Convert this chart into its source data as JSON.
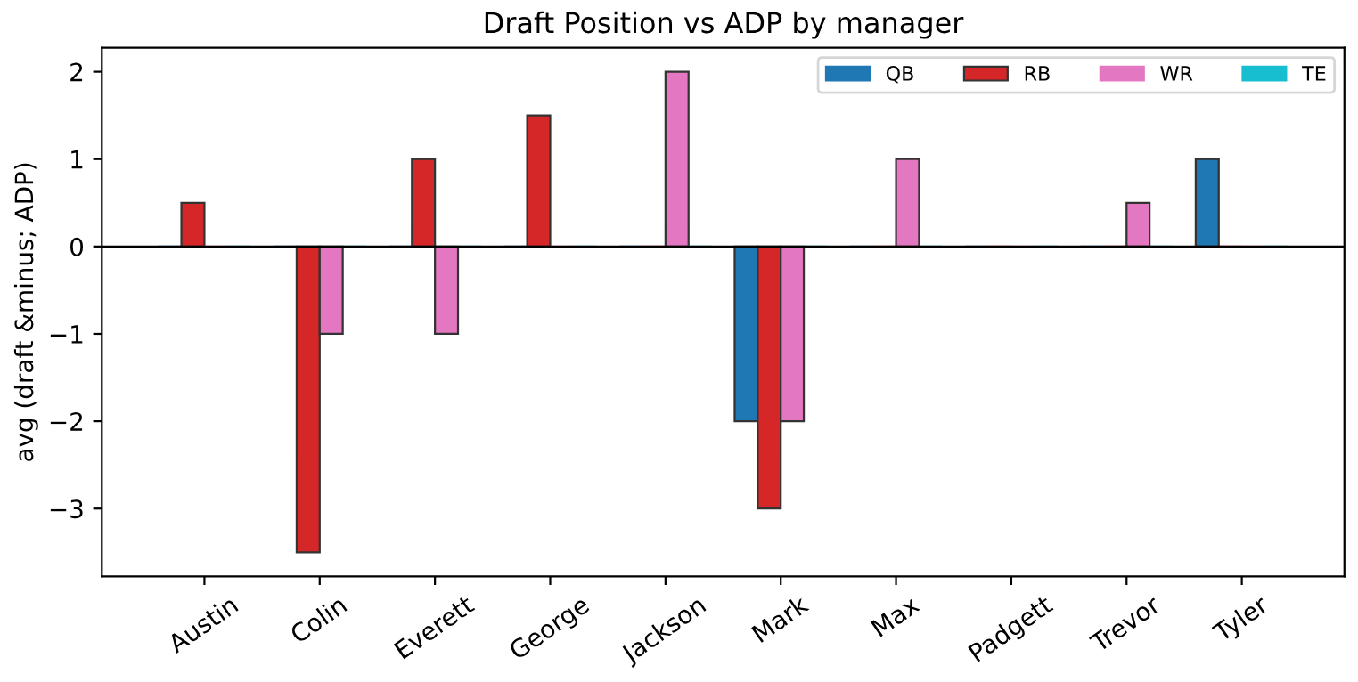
{
  "chart_data": {
    "type": "bar",
    "title": "Draft Position vs ADP by manager",
    "ylabel": "avg (draft &minus; ADP)",
    "categories": [
      "Austin",
      "Colin",
      "Everett",
      "George",
      "Jackson",
      "Mark",
      "Max",
      "Padgett",
      "Trevor",
      "Tyler"
    ],
    "series": [
      {
        "name": "QB",
        "color": "#1f77b4",
        "values": [
          0,
          0,
          0,
          0,
          0,
          -2,
          0,
          0,
          0,
          1
        ]
      },
      {
        "name": "RB",
        "color": "#d62728",
        "values": [
          0.5,
          -3.5,
          1,
          1.5,
          0,
          -3,
          0,
          0,
          0,
          0
        ]
      },
      {
        "name": "WR",
        "color": "#e377c2",
        "values": [
          0,
          -1,
          -1,
          0,
          2,
          -2,
          1,
          0,
          0.5,
          0
        ]
      },
      {
        "name": "TE",
        "color": "#17becf",
        "values": [
          0,
          0,
          0,
          0,
          0,
          0,
          0,
          0,
          0,
          0
        ]
      }
    ],
    "ylim": [
      -3.775,
      2.275
    ],
    "yticks": [
      {
        "value": -3,
        "label": "−3"
      },
      {
        "value": -2,
        "label": "−2"
      },
      {
        "value": -1,
        "label": "−1"
      },
      0,
      1,
      2
    ],
    "ref_lines": [
      {
        "axis": "y",
        "value": 0,
        "color": "#000000"
      }
    ],
    "legend": "top right",
    "grid": false
  }
}
